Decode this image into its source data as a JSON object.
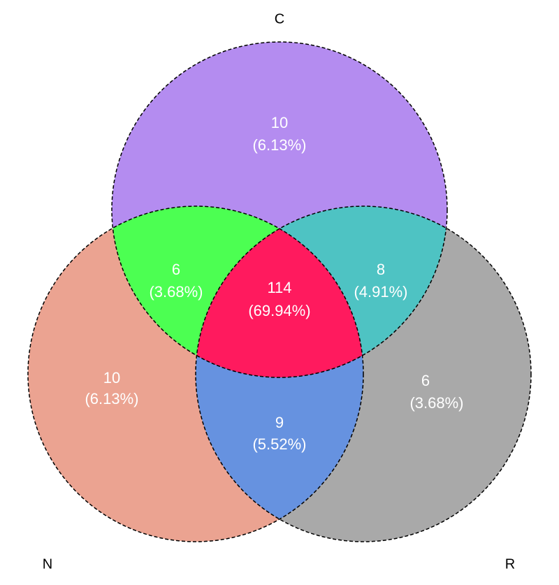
{
  "sets": [
    {
      "label": "C"
    },
    {
      "label": "N"
    },
    {
      "label": "R"
    }
  ],
  "regions": [
    {
      "sets": "C",
      "count": 10,
      "percent": "(6.13%)"
    },
    {
      "sets": "C∩N",
      "count": 6,
      "percent": "(3.68%)"
    },
    {
      "sets": "C∩N∩R",
      "count": 114,
      "percent": "(69.94%)"
    },
    {
      "sets": "C∩R",
      "count": 8,
      "percent": "(4.91%)"
    },
    {
      "sets": "N",
      "count": 10,
      "percent": "(6.13%)"
    },
    {
      "sets": "N∩R",
      "count": 9,
      "percent": "(5.52%)"
    },
    {
      "sets": "R",
      "count": 6,
      "percent": "(3.68%)"
    }
  ]
}
